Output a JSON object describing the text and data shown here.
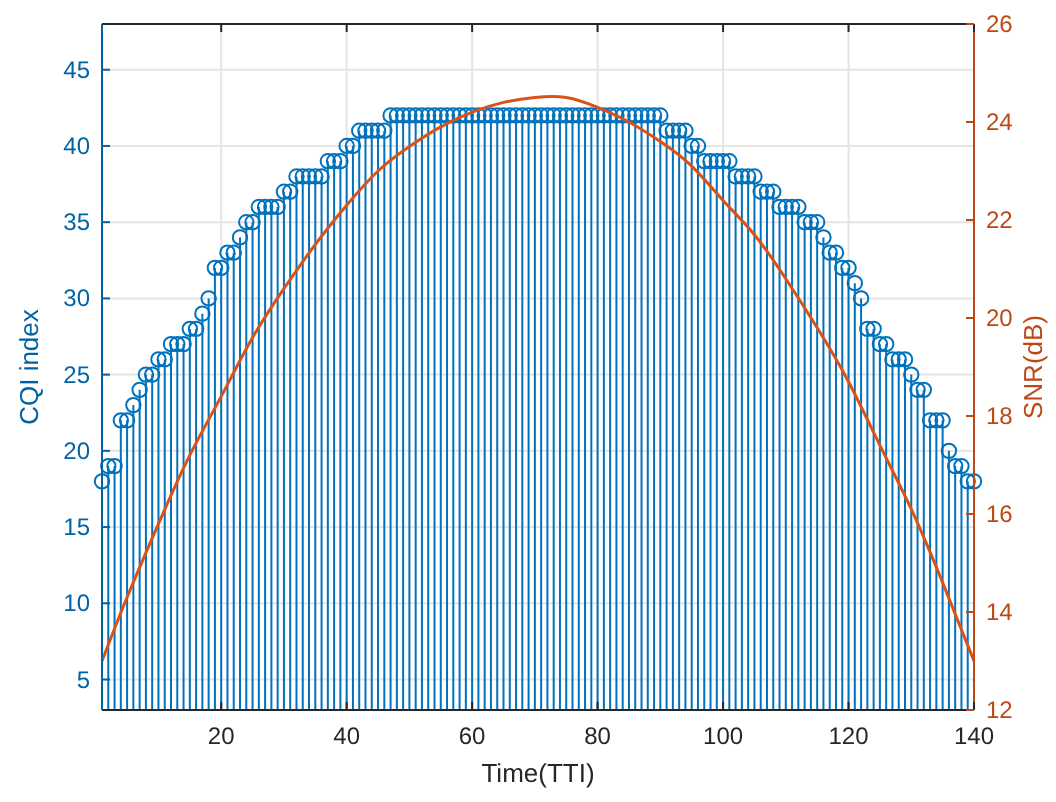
{
  "chart_data": {
    "type": "lollipop",
    "xlabel": "Time(TTI)",
    "ylabel": "CQI index",
    "y2label": "SNR(dB)",
    "xlim": [
      1,
      140
    ],
    "xticks": [
      20,
      40,
      60,
      80,
      100,
      120,
      140
    ],
    "ylim": [
      3,
      48
    ],
    "yticks": [
      5,
      10,
      15,
      20,
      25,
      30,
      35,
      40,
      45
    ],
    "y2lim": [
      12,
      26
    ],
    "y2ticks": [
      12,
      14,
      16,
      18,
      20,
      22,
      24,
      26
    ],
    "grid": true,
    "marker": "circle",
    "series": [
      {
        "color": "#0072bd",
        "x": [
          1,
          2,
          3,
          4,
          5,
          6,
          7,
          8,
          9,
          10,
          11,
          12,
          13,
          14,
          15,
          16,
          17,
          18,
          19,
          20,
          21,
          22,
          23,
          24,
          25,
          26,
          27,
          28,
          29,
          30,
          31,
          32,
          33,
          34,
          35,
          36,
          37,
          38,
          39,
          40,
          41,
          42,
          43,
          44,
          45,
          46,
          47,
          48,
          49,
          50,
          51,
          52,
          53,
          54,
          55,
          56,
          57,
          58,
          59,
          60,
          61,
          62,
          63,
          64,
          65,
          66,
          67,
          68,
          69,
          70,
          71,
          72,
          73,
          74,
          75,
          76,
          77,
          78,
          79,
          80,
          81,
          82,
          83,
          84,
          85,
          86,
          87,
          88,
          89,
          90,
          91,
          92,
          93,
          94,
          95,
          96,
          97,
          98,
          99,
          100,
          101,
          102,
          103,
          104,
          105,
          106,
          107,
          108,
          109,
          110,
          111,
          112,
          113,
          114,
          115,
          116,
          117,
          118,
          119,
          120,
          121,
          122,
          123,
          124,
          125,
          126,
          127,
          128,
          129,
          130,
          131,
          132,
          133,
          134,
          135,
          136,
          137,
          138,
          139,
          140
        ],
        "values": [
          18,
          19,
          19,
          22,
          22,
          23,
          24,
          25,
          25,
          26,
          26,
          27,
          27,
          27,
          28,
          28,
          29,
          30,
          32,
          32,
          33,
          33,
          34,
          35,
          35,
          36,
          36,
          36,
          36,
          37,
          37,
          38,
          38,
          38,
          38,
          38,
          39,
          39,
          39,
          40,
          40,
          41,
          41,
          41,
          41,
          41,
          42,
          42,
          42,
          42,
          42,
          42,
          42,
          42,
          42,
          42,
          42,
          42,
          42,
          42,
          42,
          42,
          42,
          42,
          42,
          42,
          42,
          42,
          42,
          42,
          42,
          42,
          42,
          42,
          42,
          42,
          42,
          42,
          42,
          42,
          42,
          42,
          42,
          42,
          42,
          42,
          42,
          42,
          42,
          42,
          41,
          41,
          41,
          41,
          40,
          40,
          39,
          39,
          39,
          39,
          39,
          38,
          38,
          38,
          38,
          37,
          37,
          37,
          36,
          36,
          36,
          36,
          35,
          35,
          35,
          34,
          33,
          33,
          32,
          32,
          31,
          30,
          28,
          28,
          27,
          27,
          26,
          26,
          26,
          25,
          24,
          24,
          22,
          22,
          22,
          20,
          19,
          19,
          18,
          18
        ]
      },
      {
        "type": "line",
        "axis": "y2",
        "color": "#d95319",
        "marker": "none",
        "x": [
          1,
          5,
          10,
          15,
          20,
          25,
          30,
          35,
          40,
          45,
          50,
          55,
          60,
          65,
          70,
          75,
          80,
          85,
          90,
          95,
          100,
          105,
          110,
          115,
          120,
          125,
          130,
          135,
          140
        ],
        "values": [
          13.0,
          14.3,
          15.8,
          17.2,
          18.4,
          19.6,
          20.6,
          21.5,
          22.3,
          23.0,
          23.5,
          23.9,
          24.2,
          24.4,
          24.5,
          24.5,
          24.3,
          24.0,
          23.6,
          23.1,
          22.4,
          21.7,
          20.8,
          19.8,
          18.7,
          17.4,
          16.1,
          14.6,
          13.0
        ]
      }
    ]
  }
}
